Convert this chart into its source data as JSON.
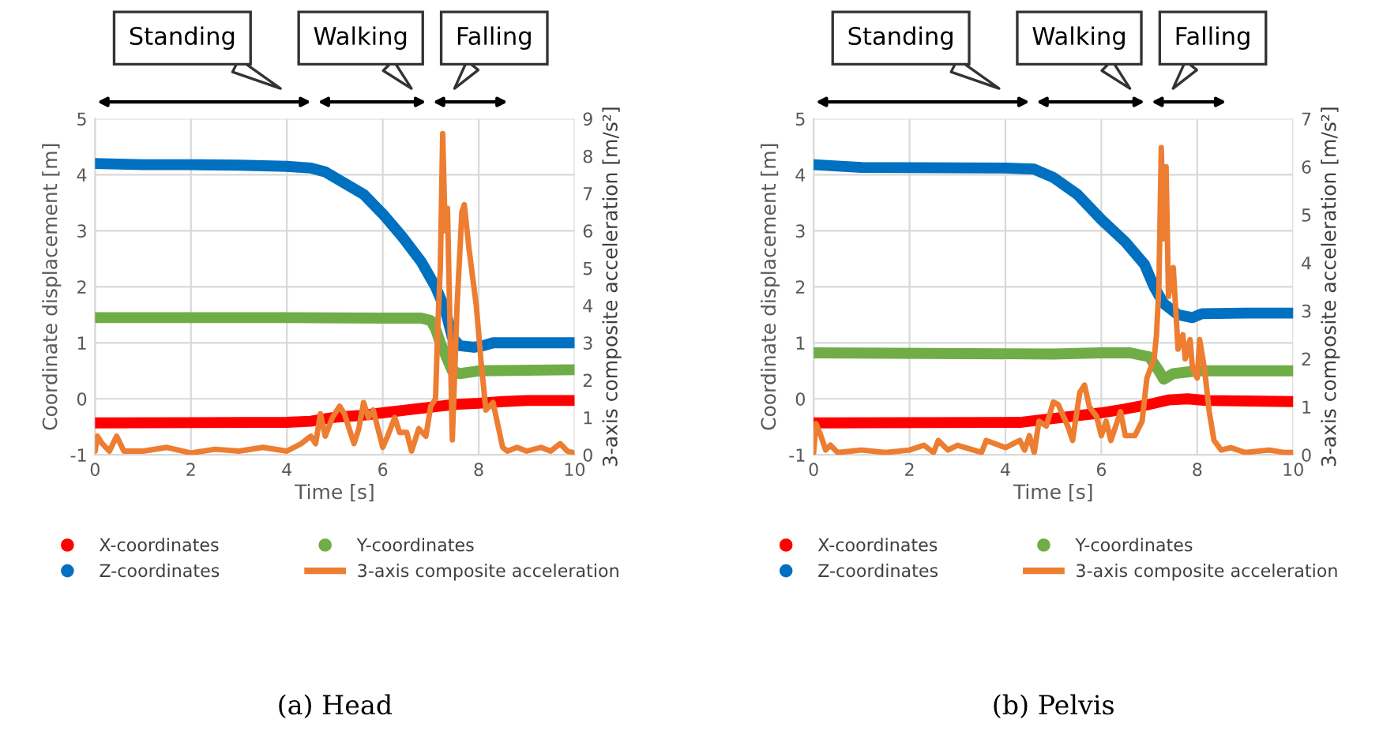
{
  "chart_data": [
    {
      "type": "line",
      "title": "(a) Head",
      "xlabel": "Time [s]",
      "ylabel": "Coordinate displacement [m]",
      "y2label": "3-axis composite acceleration [m/s²]",
      "xlim": [
        0,
        10
      ],
      "xticks": [
        0,
        2,
        4,
        6,
        8,
        10
      ],
      "ylim": [
        -1,
        5
      ],
      "yticks": [
        -1,
        0,
        1,
        2,
        3,
        4,
        5
      ],
      "y2lim": [
        0,
        9
      ],
      "y2ticks": [
        0,
        1,
        2,
        3,
        4,
        5,
        6,
        7,
        8,
        9
      ],
      "grid": true,
      "legend": "bottom",
      "annotations": [
        "Standing",
        "Walking",
        "Falling"
      ],
      "series": [
        {
          "name": "X-coordinates",
          "color": "#ff0000",
          "x": [
            0,
            4,
            4.5,
            5,
            5.5,
            6,
            6.5,
            7,
            7.5,
            8,
            8.5,
            9,
            10
          ],
          "values": [
            -0.43,
            -0.42,
            -0.4,
            -0.33,
            -0.3,
            -0.25,
            -0.2,
            -0.15,
            -0.1,
            -0.08,
            -0.05,
            -0.03,
            -0.03
          ]
        },
        {
          "name": "Z-coordinates",
          "color": "#0070c0",
          "x": [
            0,
            1,
            2,
            3,
            4,
            4.5,
            4.8,
            5.2,
            5.6,
            6.0,
            6.4,
            6.8,
            7.1,
            7.3,
            7.45,
            7.6,
            7.9,
            8.1,
            8.3,
            9,
            10
          ],
          "values": [
            4.2,
            4.18,
            4.18,
            4.17,
            4.15,
            4.12,
            4.05,
            3.85,
            3.65,
            3.3,
            2.9,
            2.45,
            2.0,
            1.6,
            1.1,
            0.95,
            0.92,
            0.95,
            1.0,
            1.0,
            1.0
          ]
        },
        {
          "name": "Y-coordinates",
          "color": "#70ad47",
          "x": [
            0,
            2,
            4,
            6,
            6.8,
            7.0,
            7.1,
            7.2,
            7.35,
            7.45,
            7.6,
            8,
            10
          ],
          "values": [
            1.45,
            1.45,
            1.45,
            1.44,
            1.44,
            1.4,
            1.25,
            1.0,
            0.7,
            0.5,
            0.45,
            0.5,
            0.52
          ]
        },
        {
          "name": "3-axis composite acceleration",
          "color": "#ed7d31",
          "axis": "y2",
          "x": [
            0,
            0.05,
            0.15,
            0.3,
            0.45,
            0.6,
            1,
            1.5,
            2,
            2.5,
            3,
            3.5,
            4,
            4.3,
            4.5,
            4.6,
            4.7,
            4.8,
            4.95,
            5.1,
            5.2,
            5.3,
            5.4,
            5.5,
            5.6,
            5.7,
            5.8,
            5.9,
            6.0,
            6.1,
            6.25,
            6.35,
            6.5,
            6.6,
            6.75,
            6.9,
            7.0,
            7.1,
            7.15,
            7.2,
            7.25,
            7.3,
            7.35,
            7.4,
            7.45,
            7.55,
            7.65,
            7.7,
            7.8,
            7.95,
            8.05,
            8.15,
            8.3,
            8.4,
            8.5,
            8.6,
            8.8,
            9,
            9.3,
            9.5,
            9.7,
            9.85,
            10
          ],
          "values": [
            0.1,
            0.5,
            0.3,
            0.1,
            0.5,
            0.1,
            0.1,
            0.2,
            0.05,
            0.15,
            0.1,
            0.2,
            0.1,
            0.3,
            0.5,
            0.3,
            1.1,
            0.5,
            1.0,
            1.3,
            1.1,
            0.7,
            0.3,
            0.7,
            1.4,
            1.0,
            1.2,
            0.7,
            0.2,
            0.5,
            1.0,
            0.6,
            0.6,
            0.1,
            0.7,
            0.5,
            1.3,
            1.5,
            3.5,
            5.0,
            8.6,
            6.0,
            6.6,
            3.5,
            0.4,
            4.0,
            6.5,
            6.7,
            5.5,
            4.0,
            2.5,
            1.2,
            1.4,
            0.8,
            0.2,
            0.1,
            0.2,
            0.1,
            0.2,
            0.1,
            0.3,
            0.1,
            0.05
          ]
        }
      ]
    },
    {
      "type": "line",
      "title": "(b) Pelvis",
      "xlabel": "Time [s]",
      "ylabel": "Coordinate displacement [m]",
      "y2label": "3-axis composite acceleration [m/s²]",
      "xlim": [
        0,
        10
      ],
      "xticks": [
        0,
        2,
        4,
        6,
        8,
        10
      ],
      "ylim": [
        -1,
        5
      ],
      "yticks": [
        -1,
        0,
        1,
        2,
        3,
        4,
        5
      ],
      "y2lim": [
        0,
        7
      ],
      "y2ticks": [
        0,
        1,
        2,
        3,
        4,
        5,
        6,
        7
      ],
      "grid": true,
      "legend": "bottom",
      "annotations": [
        "Standing",
        "Walking",
        "Falling"
      ],
      "series": [
        {
          "name": "X-coordinates",
          "color": "#ff0000",
          "x": [
            0,
            4.3,
            5,
            5.5,
            6,
            6.5,
            7,
            7.4,
            7.8,
            8.2,
            10
          ],
          "values": [
            -0.43,
            -0.42,
            -0.35,
            -0.3,
            -0.25,
            -0.18,
            -0.1,
            -0.02,
            0,
            -0.03,
            -0.05
          ]
        },
        {
          "name": "Z-coordinates",
          "color": "#0070c0",
          "x": [
            0,
            1,
            4,
            4.6,
            5,
            5.5,
            6,
            6.5,
            6.9,
            7.1,
            7.3,
            7.6,
            7.9,
            8.1,
            9,
            10
          ],
          "values": [
            4.18,
            4.13,
            4.12,
            4.1,
            3.95,
            3.65,
            3.2,
            2.8,
            2.4,
            2.0,
            1.7,
            1.5,
            1.45,
            1.52,
            1.53,
            1.53
          ]
        },
        {
          "name": "Y-coordinates",
          "color": "#70ad47",
          "x": [
            0,
            5,
            6,
            6.6,
            7.0,
            7.2,
            7.3,
            7.5,
            8,
            10
          ],
          "values": [
            0.82,
            0.8,
            0.82,
            0.82,
            0.75,
            0.5,
            0.35,
            0.45,
            0.5,
            0.5
          ]
        },
        {
          "name": "3-axis composite acceleration",
          "color": "#ed7d31",
          "axis": "y2",
          "x": [
            0,
            0.05,
            0.15,
            0.25,
            0.35,
            0.5,
            1,
            1.5,
            2,
            2.3,
            2.5,
            2.6,
            2.8,
            3,
            3.5,
            3.6,
            4,
            4.3,
            4.4,
            4.5,
            4.6,
            4.7,
            4.85,
            5.0,
            5.1,
            5.3,
            5.4,
            5.55,
            5.65,
            5.75,
            5.9,
            6.0,
            6.1,
            6.2,
            6.4,
            6.5,
            6.7,
            6.85,
            6.95,
            7.1,
            7.15,
            7.2,
            7.25,
            7.3,
            7.35,
            7.4,
            7.5,
            7.6,
            7.7,
            7.75,
            7.85,
            7.9,
            8.0,
            8.05,
            8.15,
            8.25,
            8.35,
            8.5,
            8.7,
            9,
            9.5,
            9.8,
            10
          ],
          "values": [
            0.05,
            0.65,
            0.4,
            0.1,
            0.2,
            0.05,
            0.1,
            0.05,
            0.1,
            0.2,
            0.05,
            0.3,
            0.1,
            0.2,
            0.05,
            0.3,
            0.15,
            0.3,
            0.1,
            0.4,
            0.05,
            0.7,
            0.6,
            1.1,
            1.05,
            0.6,
            0.3,
            1.3,
            1.45,
            1.0,
            0.8,
            0.4,
            0.7,
            0.3,
            0.9,
            0.4,
            0.4,
            0.7,
            1.6,
            2.0,
            2.5,
            3.5,
            6.4,
            4.5,
            6.0,
            3.3,
            3.9,
            2.2,
            2.5,
            2.0,
            2.4,
            1.8,
            1.6,
            2.4,
            1.8,
            0.9,
            0.3,
            0.1,
            0.15,
            0.05,
            0.1,
            0.05,
            0.05
          ]
        }
      ]
    }
  ]
}
